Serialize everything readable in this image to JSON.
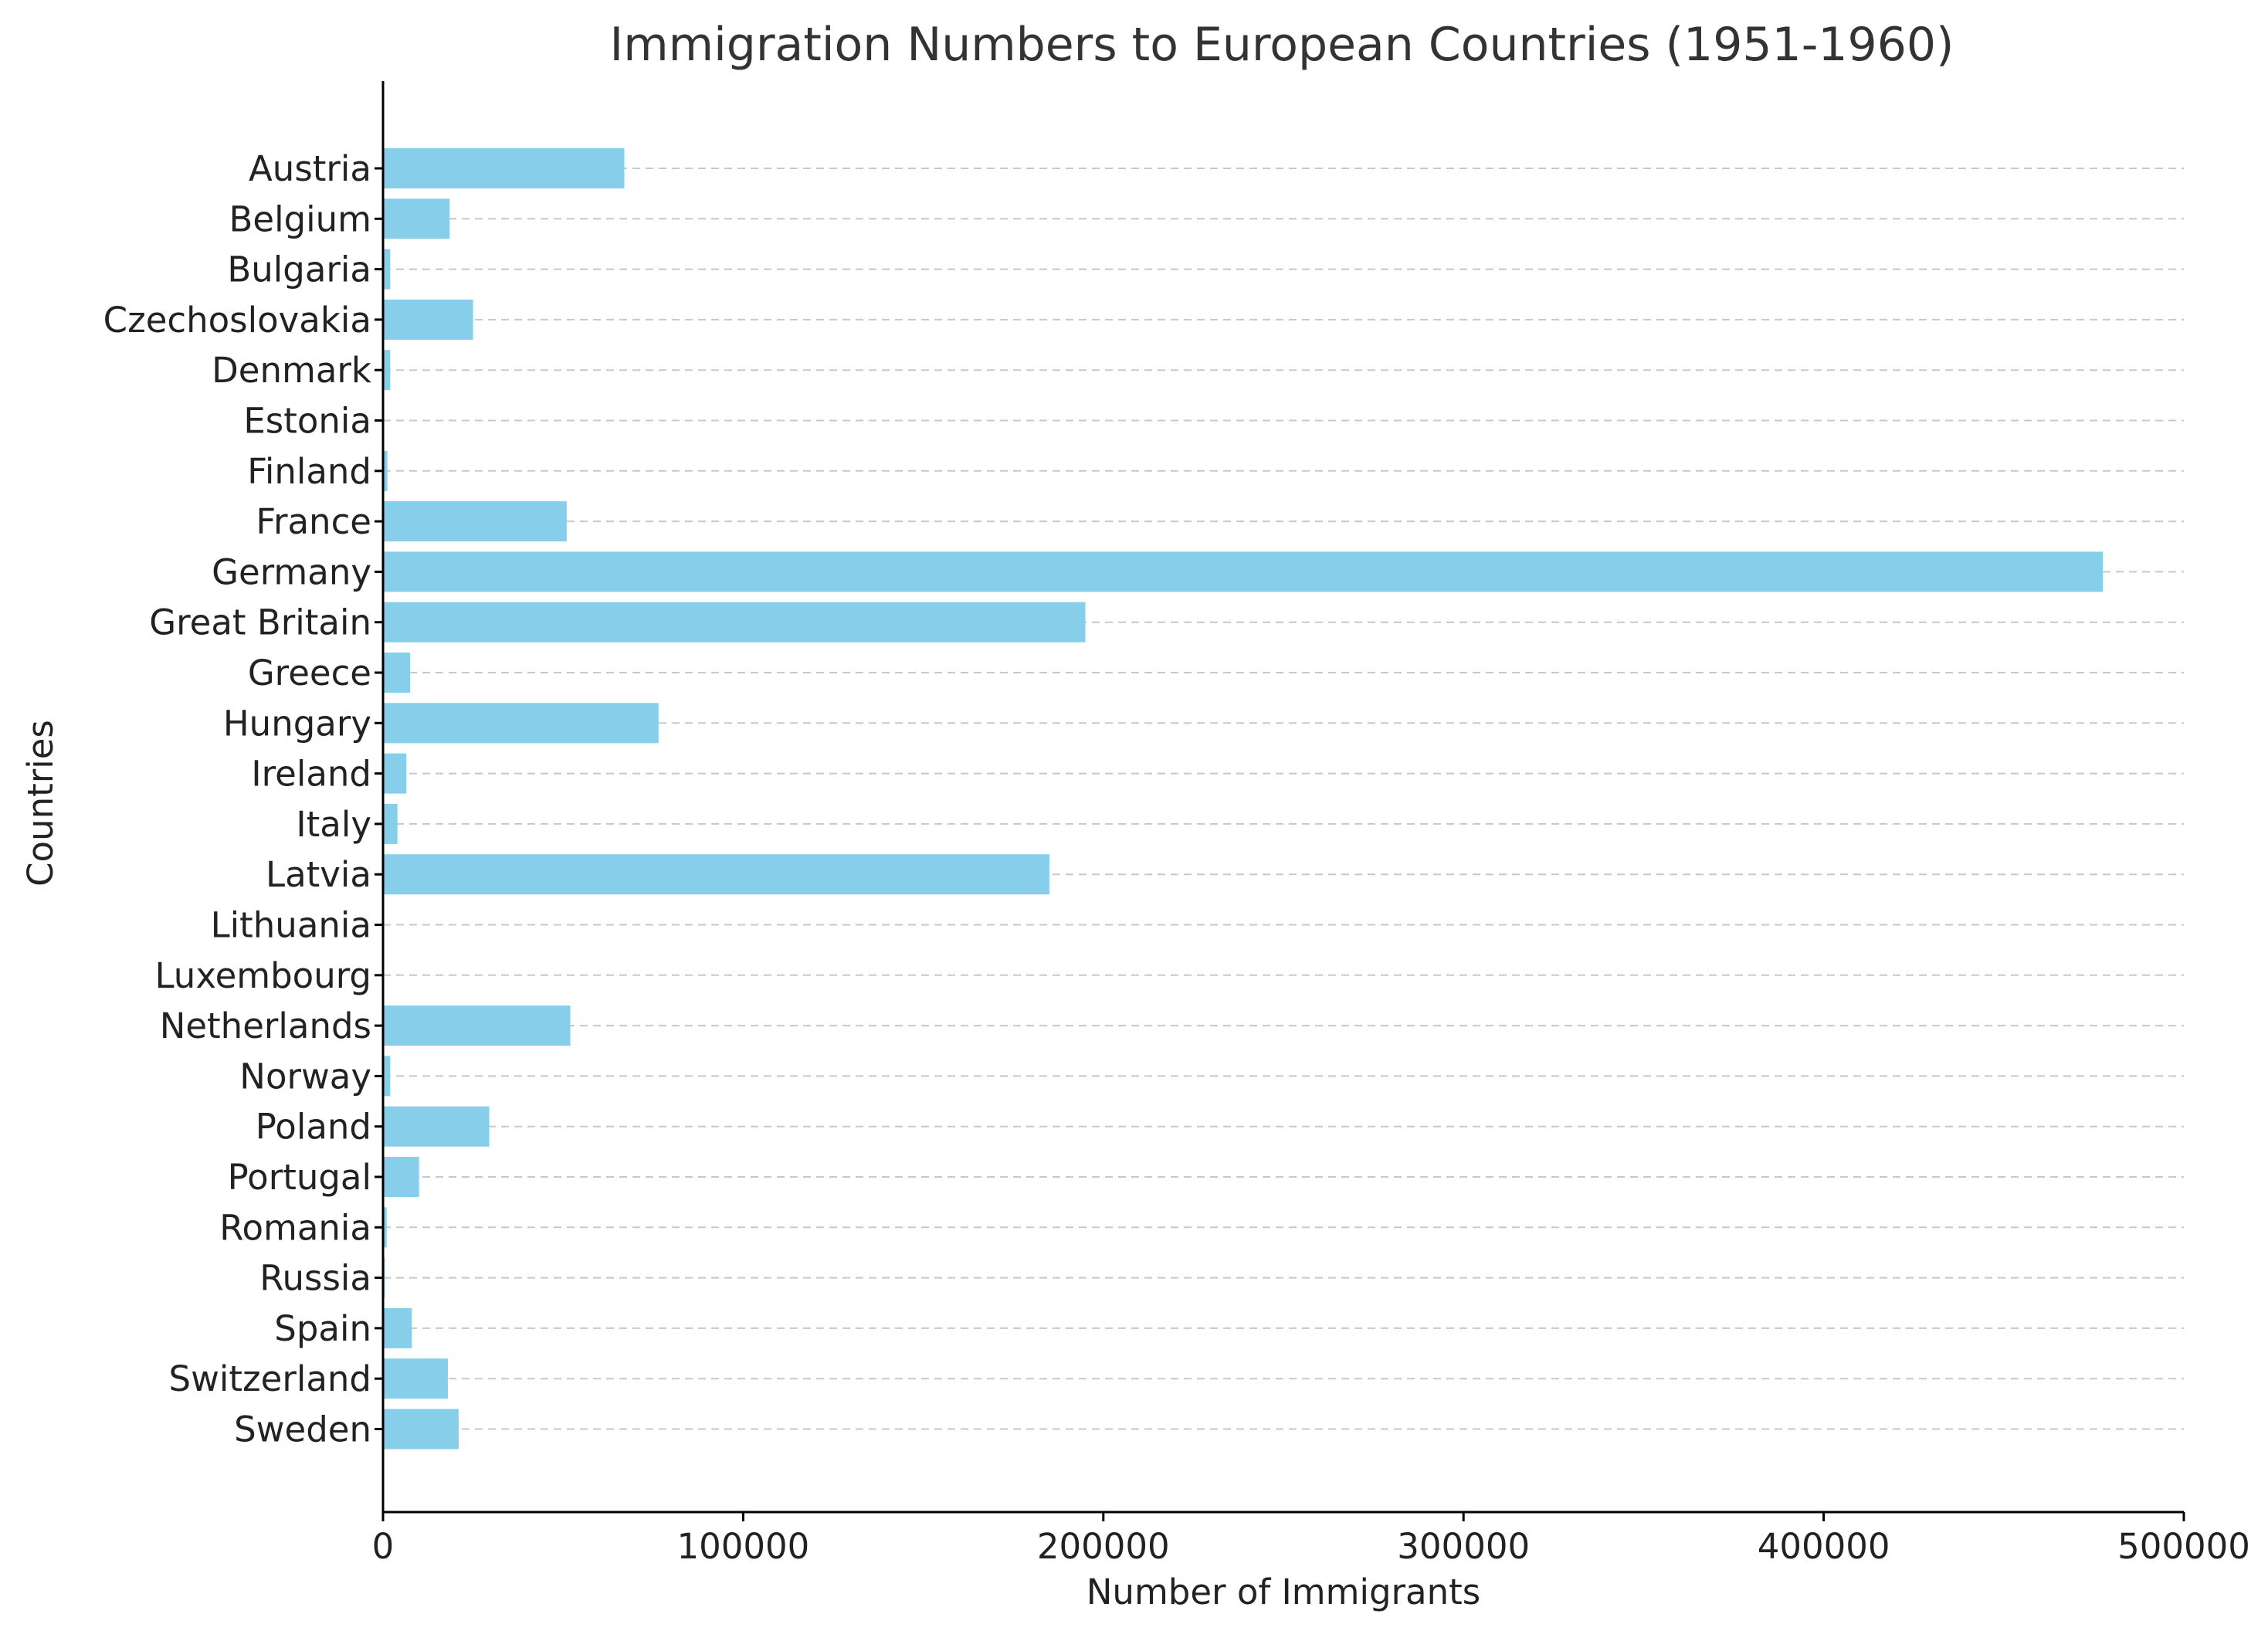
{
  "chart_data": {
    "type": "bar",
    "orientation": "horizontal",
    "title": "Immigration Numbers to European Countries (1951-1960)",
    "xlabel": "Number of Immigrants",
    "ylabel": "Countries",
    "xlim": [
      0,
      500000
    ],
    "xticks": [
      "0",
      "100000",
      "200000",
      "300000",
      "400000",
      "500000"
    ],
    "xtick_values": [
      0,
      100000,
      200000,
      300000,
      400000,
      500000
    ],
    "grid": "horizontal dashed",
    "bar_color": "#87ceeb",
    "categories": [
      "Austria",
      "Belgium",
      "Bulgaria",
      "Czechoslovakia",
      "Denmark",
      "Estonia",
      "Finland",
      "France",
      "Germany",
      "Great Britain",
      "Greece",
      "Hungary",
      "Ireland",
      "Italy",
      "Latvia",
      "Lithuania",
      "Luxembourg",
      "Netherlands",
      "Norway",
      "Poland",
      "Portugal",
      "Romania",
      "Russia",
      "Spain",
      "Switzerland",
      "Sweden"
    ],
    "values": [
      67000,
      18500,
      2000,
      25000,
      2000,
      200,
      1200,
      51000,
      477500,
      195000,
      7500,
      76500,
      6500,
      4000,
      185000,
      100,
      100,
      52000,
      2000,
      29500,
      10000,
      1000,
      500,
      8000,
      18000,
      21000
    ]
  }
}
